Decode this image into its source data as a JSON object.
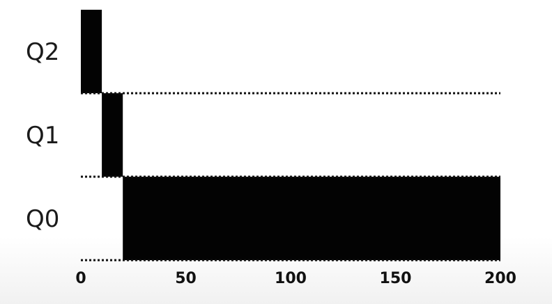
{
  "chart_data": {
    "type": "gantt",
    "title": "",
    "xlabel": "",
    "ylabel": "",
    "xlim": [
      0,
      200
    ],
    "x_ticks": [
      "0",
      "50",
      "100",
      "150",
      "200"
    ],
    "x_tick_values": [
      0,
      50,
      100,
      150,
      200
    ],
    "queues": [
      "Q2",
      "Q1",
      "Q0"
    ],
    "segments": [
      {
        "queue": "Q2",
        "start": 0,
        "end": 10
      },
      {
        "queue": "Q1",
        "start": 10,
        "end": 20
      },
      {
        "queue": "Q0",
        "start": 20,
        "end": 200
      }
    ],
    "bar_color": "#030303",
    "separator_style": "dotted",
    "grid": false,
    "legend": "none"
  }
}
